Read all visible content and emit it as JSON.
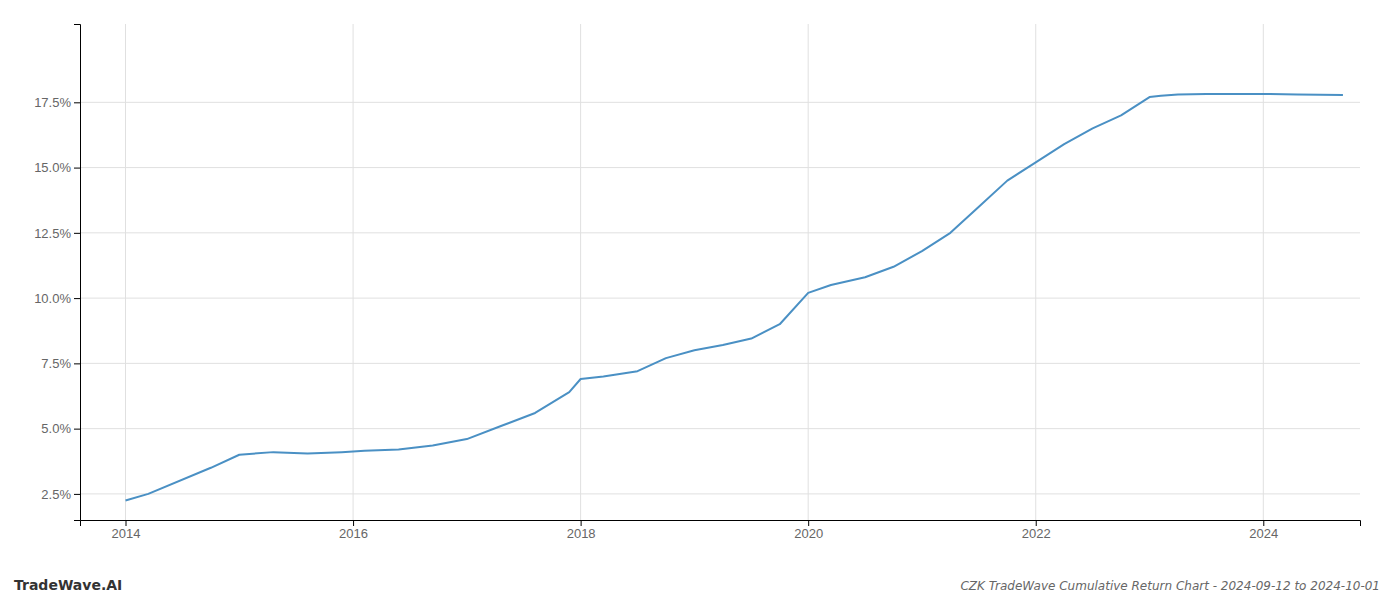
{
  "chart_data": {
    "type": "line",
    "title": "CZK TradeWave Cumulative Return Chart - 2024-09-12 to 2024-10-01",
    "annotations": [
      "TradeWave.AI"
    ],
    "x": [
      2014.0,
      2014.2,
      2014.75,
      2015.0,
      2015.3,
      2015.6,
      2015.9,
      2016.1,
      2016.4,
      2016.7,
      2017.0,
      2017.3,
      2017.6,
      2017.9,
      2018.0,
      2018.2,
      2018.5,
      2018.75,
      2019.0,
      2019.25,
      2019.5,
      2019.75,
      2020.0,
      2020.2,
      2020.5,
      2020.75,
      2021.0,
      2021.25,
      2021.5,
      2021.75,
      2022.0,
      2022.25,
      2022.5,
      2022.75,
      2023.0,
      2023.1,
      2023.25,
      2023.5,
      2023.75,
      2024.0,
      2024.3,
      2024.7
    ],
    "values": [
      2.25,
      2.5,
      3.5,
      4.0,
      4.1,
      4.05,
      4.1,
      4.15,
      4.2,
      4.35,
      4.6,
      5.1,
      5.6,
      6.4,
      6.9,
      7.0,
      7.2,
      7.7,
      8.0,
      8.2,
      8.45,
      9.0,
      10.2,
      10.5,
      10.8,
      11.2,
      11.8,
      12.5,
      13.5,
      14.5,
      15.2,
      15.9,
      16.5,
      17.0,
      17.7,
      17.75,
      17.8,
      17.82,
      17.82,
      17.82,
      17.8,
      17.78
    ],
    "color": "#4a90c4",
    "xlim": [
      2013.6,
      2024.85
    ],
    "ylim": [
      1.5,
      20.5
    ],
    "xticks": [
      2014,
      2016,
      2018,
      2020,
      2022,
      2024
    ],
    "yticks": [
      {
        "value": 2.5,
        "label": "2.5%"
      },
      {
        "value": 5.0,
        "label": "5.0%"
      },
      {
        "value": 7.5,
        "label": "7.5%"
      },
      {
        "value": 10.0,
        "label": "10.0%"
      },
      {
        "value": 12.5,
        "label": "12.5%"
      },
      {
        "value": 15.0,
        "label": "15.0%"
      },
      {
        "value": 17.5,
        "label": "17.5%"
      }
    ],
    "grid": true
  }
}
